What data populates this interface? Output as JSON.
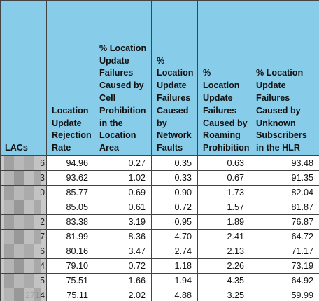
{
  "table": {
    "headers": [
      "LACs",
      "Location Update Rejection Rate",
      "% Location Update Failures Caused by Cell Prohibition in the Location Area",
      "% Location Update Failures Caused by Network Faults",
      "% Location Update Failures Caused by Roaming Prohibition",
      "% Location Update Failures Caused by Unknown Subscribers in the HLR"
    ],
    "rows": [
      {
        "lac": "6",
        "rate": "94.96",
        "cell": "0.27",
        "network": "0.35",
        "roaming": "0.63",
        "unknown": "93.48"
      },
      {
        "lac": "3",
        "rate": "93.62",
        "cell": "1.02",
        "network": "0.33",
        "roaming": "0.67",
        "unknown": "91.35"
      },
      {
        "lac": "0",
        "rate": "85.77",
        "cell": "0.69",
        "network": "0.90",
        "roaming": "1.73",
        "unknown": "82.04"
      },
      {
        "lac": "",
        "rate": "85.05",
        "cell": "0.61",
        "network": "0.72",
        "roaming": "1.57",
        "unknown": "81.87"
      },
      {
        "lac": "2",
        "rate": "83.38",
        "cell": "3.19",
        "network": "0.95",
        "roaming": "1.89",
        "unknown": "76.87"
      },
      {
        "lac": "7",
        "rate": "81.99",
        "cell": "8.36",
        "network": "4.70",
        "roaming": "2.41",
        "unknown": "64.72"
      },
      {
        "lac": "6",
        "rate": "80.16",
        "cell": "3.47",
        "network": "2.74",
        "roaming": "2.13",
        "unknown": "71.17"
      },
      {
        "lac": "4",
        "rate": "79.10",
        "cell": "0.72",
        "network": "1.18",
        "roaming": "2.26",
        "unknown": "73.19"
      },
      {
        "lac": "5",
        "rate": "75.51",
        "cell": "1.66",
        "network": "1.94",
        "roaming": "4.35",
        "unknown": "64.92"
      },
      {
        "lac": "2714",
        "rate": "75.11",
        "cell": "2.02",
        "network": "4.88",
        "roaming": "3.25",
        "unknown": "59.99"
      }
    ]
  },
  "colors": {
    "header_bg": "#87cce9",
    "lac_bg": "#c9c9c9",
    "border": "#444444"
  }
}
